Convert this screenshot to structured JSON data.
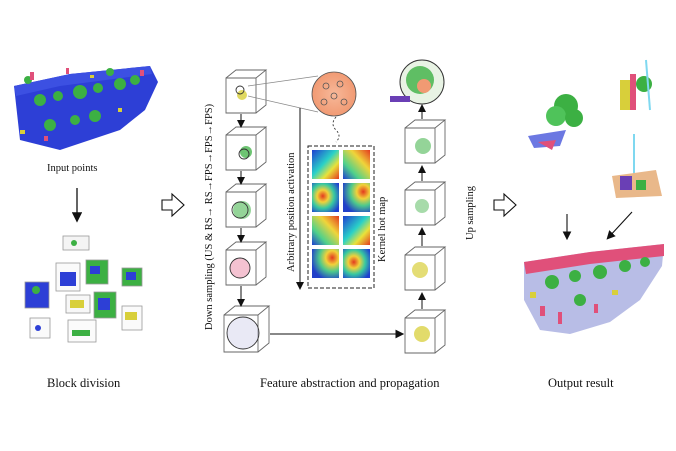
{
  "labels": {
    "input_points": "Input points",
    "block_division": "Block division",
    "feature_abstraction": "Feature abstraction and propagation",
    "output_result": "Output result",
    "down_sampling": "Down sampling (US & RS→ RS→FPS→FPS→FPS)",
    "arbitrary_position_activation": "Arbitrary position activation",
    "kernel_hot_map": "Kernel hot map",
    "up_sampling": "Up sampling"
  },
  "colors": {
    "road_blue": "#2d3fd6",
    "vegetation_green": "#3cb043",
    "building_pink": "#e0507a",
    "point_yellow": "#d8cf3a",
    "kernel_orange": "#f4a986"
  }
}
